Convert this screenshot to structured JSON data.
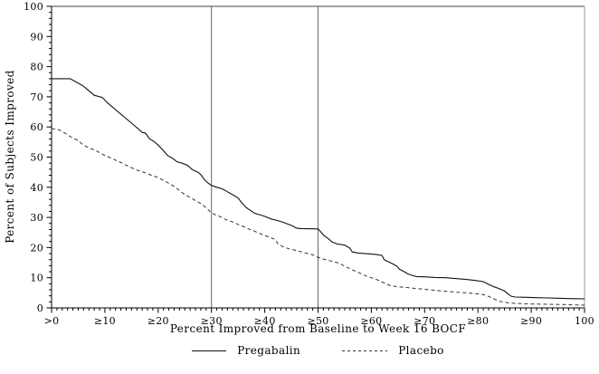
{
  "chart_data": {
    "type": "line",
    "title": "",
    "xlabel": "Percent Improved from Baseline to Week 16 BOCF",
    "ylabel": "Percent of Subjects Improved",
    "x_axis": {
      "min": 0,
      "max": 100,
      "major_step": 10,
      "minor_step": 1,
      "tick_labels": [
        ">0",
        "≥10",
        "≥20",
        "≥30",
        "≥40",
        "≥50",
        "≥60",
        "≥70",
        "≥80",
        "≥90",
        "100"
      ]
    },
    "y_axis": {
      "min": 0,
      "max": 100,
      "major_step": 10,
      "minor_step": 2,
      "tick_labels": [
        "0",
        "10",
        "20",
        "30",
        "40",
        "50",
        "60",
        "70",
        "80",
        "90",
        "100"
      ]
    },
    "reference_lines_x": [
      30,
      50
    ],
    "grid": "off",
    "legend_position": "bottom",
    "legend": [
      {
        "label": "Pregabalin",
        "style": "solid"
      },
      {
        "label": "Placebo",
        "style": "dashed"
      }
    ],
    "series": [
      {
        "name": "Pregabalin",
        "line": "solid",
        "points": [
          [
            0,
            76
          ],
          [
            3.5,
            76
          ],
          [
            5,
            74.5
          ],
          [
            6,
            73.5
          ],
          [
            7,
            72
          ],
          [
            8,
            70.5
          ],
          [
            9.5,
            69.8
          ],
          [
            10.5,
            68
          ],
          [
            11.5,
            66.5
          ],
          [
            12.5,
            65
          ],
          [
            13.5,
            63.5
          ],
          [
            14.5,
            62
          ],
          [
            15.5,
            60.5
          ],
          [
            16.2,
            59.5
          ],
          [
            17,
            58.2
          ],
          [
            17.6,
            58
          ],
          [
            18.4,
            56
          ],
          [
            19.2,
            55.2
          ],
          [
            20,
            54
          ],
          [
            20.8,
            52.5
          ],
          [
            21.8,
            50.5
          ],
          [
            22.8,
            49.5
          ],
          [
            23.5,
            48.5
          ],
          [
            24.5,
            48
          ],
          [
            25.5,
            47.3
          ],
          [
            26.3,
            46
          ],
          [
            26.8,
            45.5
          ],
          [
            27.5,
            45
          ],
          [
            28.1,
            44
          ],
          [
            28.7,
            42.5
          ],
          [
            29.3,
            41.5
          ],
          [
            30,
            40.6
          ],
          [
            31,
            40
          ],
          [
            32,
            39.5
          ],
          [
            33,
            38.5
          ],
          [
            34,
            37.5
          ],
          [
            35,
            36.5
          ],
          [
            35.7,
            34.8
          ],
          [
            36.5,
            33.3
          ],
          [
            37.3,
            32.3
          ],
          [
            38.2,
            31.3
          ],
          [
            39.2,
            30.8
          ],
          [
            40.2,
            30.2
          ],
          [
            41.2,
            29.5
          ],
          [
            42.3,
            29
          ],
          [
            43.3,
            28.5
          ],
          [
            44.3,
            27.8
          ],
          [
            45.2,
            27.2
          ],
          [
            45.9,
            26.5
          ],
          [
            46.7,
            26.3
          ],
          [
            50,
            26.2
          ],
          [
            50.4,
            25.4
          ],
          [
            51.1,
            24
          ],
          [
            51.9,
            23
          ],
          [
            52.7,
            21.8
          ],
          [
            53.6,
            21.2
          ],
          [
            55,
            20.8
          ],
          [
            56,
            19.8
          ],
          [
            56.4,
            18.6
          ],
          [
            57.5,
            18.2
          ],
          [
            59,
            18
          ],
          [
            61,
            17.7
          ],
          [
            62,
            17.4
          ],
          [
            62.4,
            16
          ],
          [
            63.1,
            15.4
          ],
          [
            64,
            14.6
          ],
          [
            64.8,
            13.8
          ],
          [
            65.3,
            12.8
          ],
          [
            66,
            12.2
          ],
          [
            66.8,
            11.3
          ],
          [
            67.8,
            10.7
          ],
          [
            68.5,
            10.4
          ],
          [
            70,
            10.3
          ],
          [
            72,
            10.1
          ],
          [
            74,
            10
          ],
          [
            76,
            9.7
          ],
          [
            78,
            9.4
          ],
          [
            79.5,
            9.1
          ],
          [
            81,
            8.7
          ],
          [
            82,
            7.8
          ],
          [
            83,
            7
          ],
          [
            84,
            6.4
          ],
          [
            85,
            5.6
          ],
          [
            85.6,
            4.7
          ],
          [
            86.2,
            3.9
          ],
          [
            87,
            3.6
          ],
          [
            89,
            3.5
          ],
          [
            91,
            3.4
          ],
          [
            93,
            3.3
          ],
          [
            95,
            3.2
          ],
          [
            97,
            3.1
          ],
          [
            100,
            3
          ]
        ]
      },
      {
        "name": "Placebo",
        "line": "dashed",
        "points": [
          [
            0,
            59.5
          ],
          [
            1.5,
            59
          ],
          [
            2.5,
            58
          ],
          [
            3.8,
            56.5
          ],
          [
            5,
            55.5
          ],
          [
            5.6,
            54.5
          ],
          [
            7,
            53
          ],
          [
            8,
            52.4
          ],
          [
            9,
            51.5
          ],
          [
            10,
            50.5
          ],
          [
            11,
            49.8
          ],
          [
            12,
            49
          ],
          [
            13,
            48.2
          ],
          [
            14,
            47.3
          ],
          [
            15,
            46.5
          ],
          [
            16,
            45.7
          ],
          [
            17,
            45.2
          ],
          [
            18,
            44.5
          ],
          [
            19,
            43.8
          ],
          [
            20,
            43.2
          ],
          [
            21,
            42.3
          ],
          [
            22,
            41.3
          ],
          [
            23,
            40.3
          ],
          [
            23.6,
            39.5
          ],
          [
            24.3,
            38.5
          ],
          [
            25,
            37.6
          ],
          [
            26,
            36.6
          ],
          [
            27,
            35.6
          ],
          [
            28,
            34.6
          ],
          [
            29,
            33.2
          ],
          [
            29.8,
            31.8
          ],
          [
            30.6,
            31
          ],
          [
            31.6,
            30.3
          ],
          [
            33,
            29
          ],
          [
            34,
            28.5
          ],
          [
            35,
            27.7
          ],
          [
            36,
            27
          ],
          [
            37,
            26.2
          ],
          [
            38,
            25.5
          ],
          [
            39,
            24.7
          ],
          [
            40,
            24
          ],
          [
            41,
            23.4
          ],
          [
            42,
            22.6
          ],
          [
            42.5,
            21.2
          ],
          [
            43.4,
            20.3
          ],
          [
            44.5,
            19.6
          ],
          [
            46,
            19
          ],
          [
            47.5,
            18.3
          ],
          [
            49,
            17.6
          ],
          [
            50,
            16.8
          ],
          [
            51,
            16.2
          ],
          [
            52.5,
            15.5
          ],
          [
            54,
            14.8
          ],
          [
            55,
            13.8
          ],
          [
            56,
            13
          ],
          [
            57,
            12.2
          ],
          [
            58,
            11.4
          ],
          [
            59,
            10.6
          ],
          [
            60,
            10
          ],
          [
            61,
            9.4
          ],
          [
            62,
            8.6
          ],
          [
            63,
            7.8
          ],
          [
            63.7,
            7.3
          ],
          [
            65,
            7
          ],
          [
            66.5,
            6.8
          ],
          [
            68,
            6.5
          ],
          [
            70,
            6.2
          ],
          [
            72,
            5.8
          ],
          [
            74,
            5.5
          ],
          [
            76,
            5.2
          ],
          [
            78,
            5
          ],
          [
            79.5,
            4.7
          ],
          [
            81,
            4.4
          ],
          [
            82,
            3.8
          ],
          [
            83,
            3
          ],
          [
            84,
            2.2
          ],
          [
            84.9,
            1.9
          ],
          [
            86,
            1.6
          ],
          [
            88,
            1.4
          ],
          [
            90,
            1.3
          ],
          [
            93,
            1.2
          ],
          [
            96,
            1.1
          ],
          [
            100,
            0.9
          ]
        ]
      }
    ]
  },
  "colors": {
    "background": "#ffffff",
    "text": "#000000",
    "solid_line": "#111111",
    "dashed_line": "#333333",
    "axis": "#000000",
    "reference_line": "#666666",
    "frame_top": "#444444",
    "frame_right": "#999999"
  }
}
